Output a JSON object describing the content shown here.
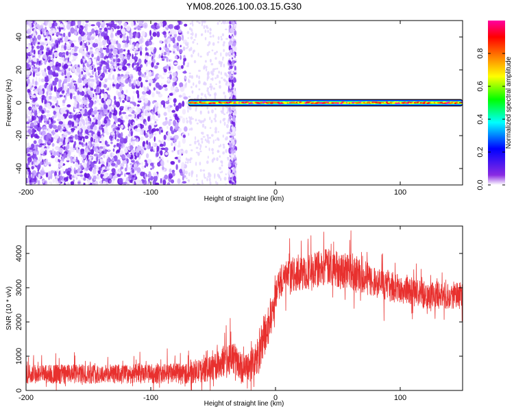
{
  "title": "YM08.2026.100.03.15.G30",
  "colors": {
    "snr_line": "#e8302e",
    "scatter": "#6a18e0",
    "colormap": [
      "#ffffff",
      "#8a2be2",
      "#0000ff",
      "#00ffff",
      "#00ff00",
      "#ffff00",
      "#ff8000",
      "#ff0000",
      "#ff00a0"
    ]
  },
  "chart_data": [
    {
      "type": "heatmap",
      "name": "spectrogram",
      "xlabel": "Height of straight line (km)",
      "ylabel": "Frequency (Hz)",
      "xlim": [
        -200,
        150
      ],
      "ylim": [
        -50,
        50
      ],
      "xticks": [
        -200,
        -100,
        0,
        100
      ],
      "yticks": [
        -40,
        -20,
        0,
        20,
        40
      ],
      "colorbar": {
        "label": "Normalized spectral amplitude",
        "range": [
          0,
          1
        ],
        "ticks": [
          "0.0",
          "0.2",
          "0.4",
          "0.6",
          "0.8"
        ]
      },
      "features": {
        "noise_region_km": [
          -200,
          -72
        ],
        "noise_stripe_km": [
          -37,
          -32
        ],
        "signal_band_km": [
          -70,
          150
        ],
        "signal_frequency_hz": 0,
        "signal_width_hz": 3,
        "peak_amplitude": 0.95
      }
    },
    {
      "type": "line",
      "name": "snr",
      "xlabel": "Height of straight line (km)",
      "ylabel": "SNR (10 * v/v)",
      "xlim": [
        -200,
        150
      ],
      "ylim": [
        0,
        4800
      ],
      "xticks": [
        -200,
        -100,
        0,
        100
      ],
      "yticks": [
        0,
        1000,
        2000,
        3000,
        4000
      ],
      "envelope": {
        "x": [
          -200,
          -100,
          -70,
          -50,
          -35,
          -25,
          -15,
          -10,
          -5,
          0,
          5,
          20,
          40,
          60,
          80,
          100,
          120,
          150
        ],
        "y_mean": [
          480,
          480,
          500,
          650,
          1000,
          600,
          900,
          1400,
          2000,
          2700,
          3300,
          3400,
          3600,
          3500,
          3150,
          2950,
          2800,
          2750
        ],
        "y_spread": [
          280,
          280,
          300,
          380,
          500,
          400,
          600,
          700,
          600,
          450,
          450,
          500,
          550,
          550,
          450,
          420,
          400,
          380
        ]
      }
    }
  ]
}
